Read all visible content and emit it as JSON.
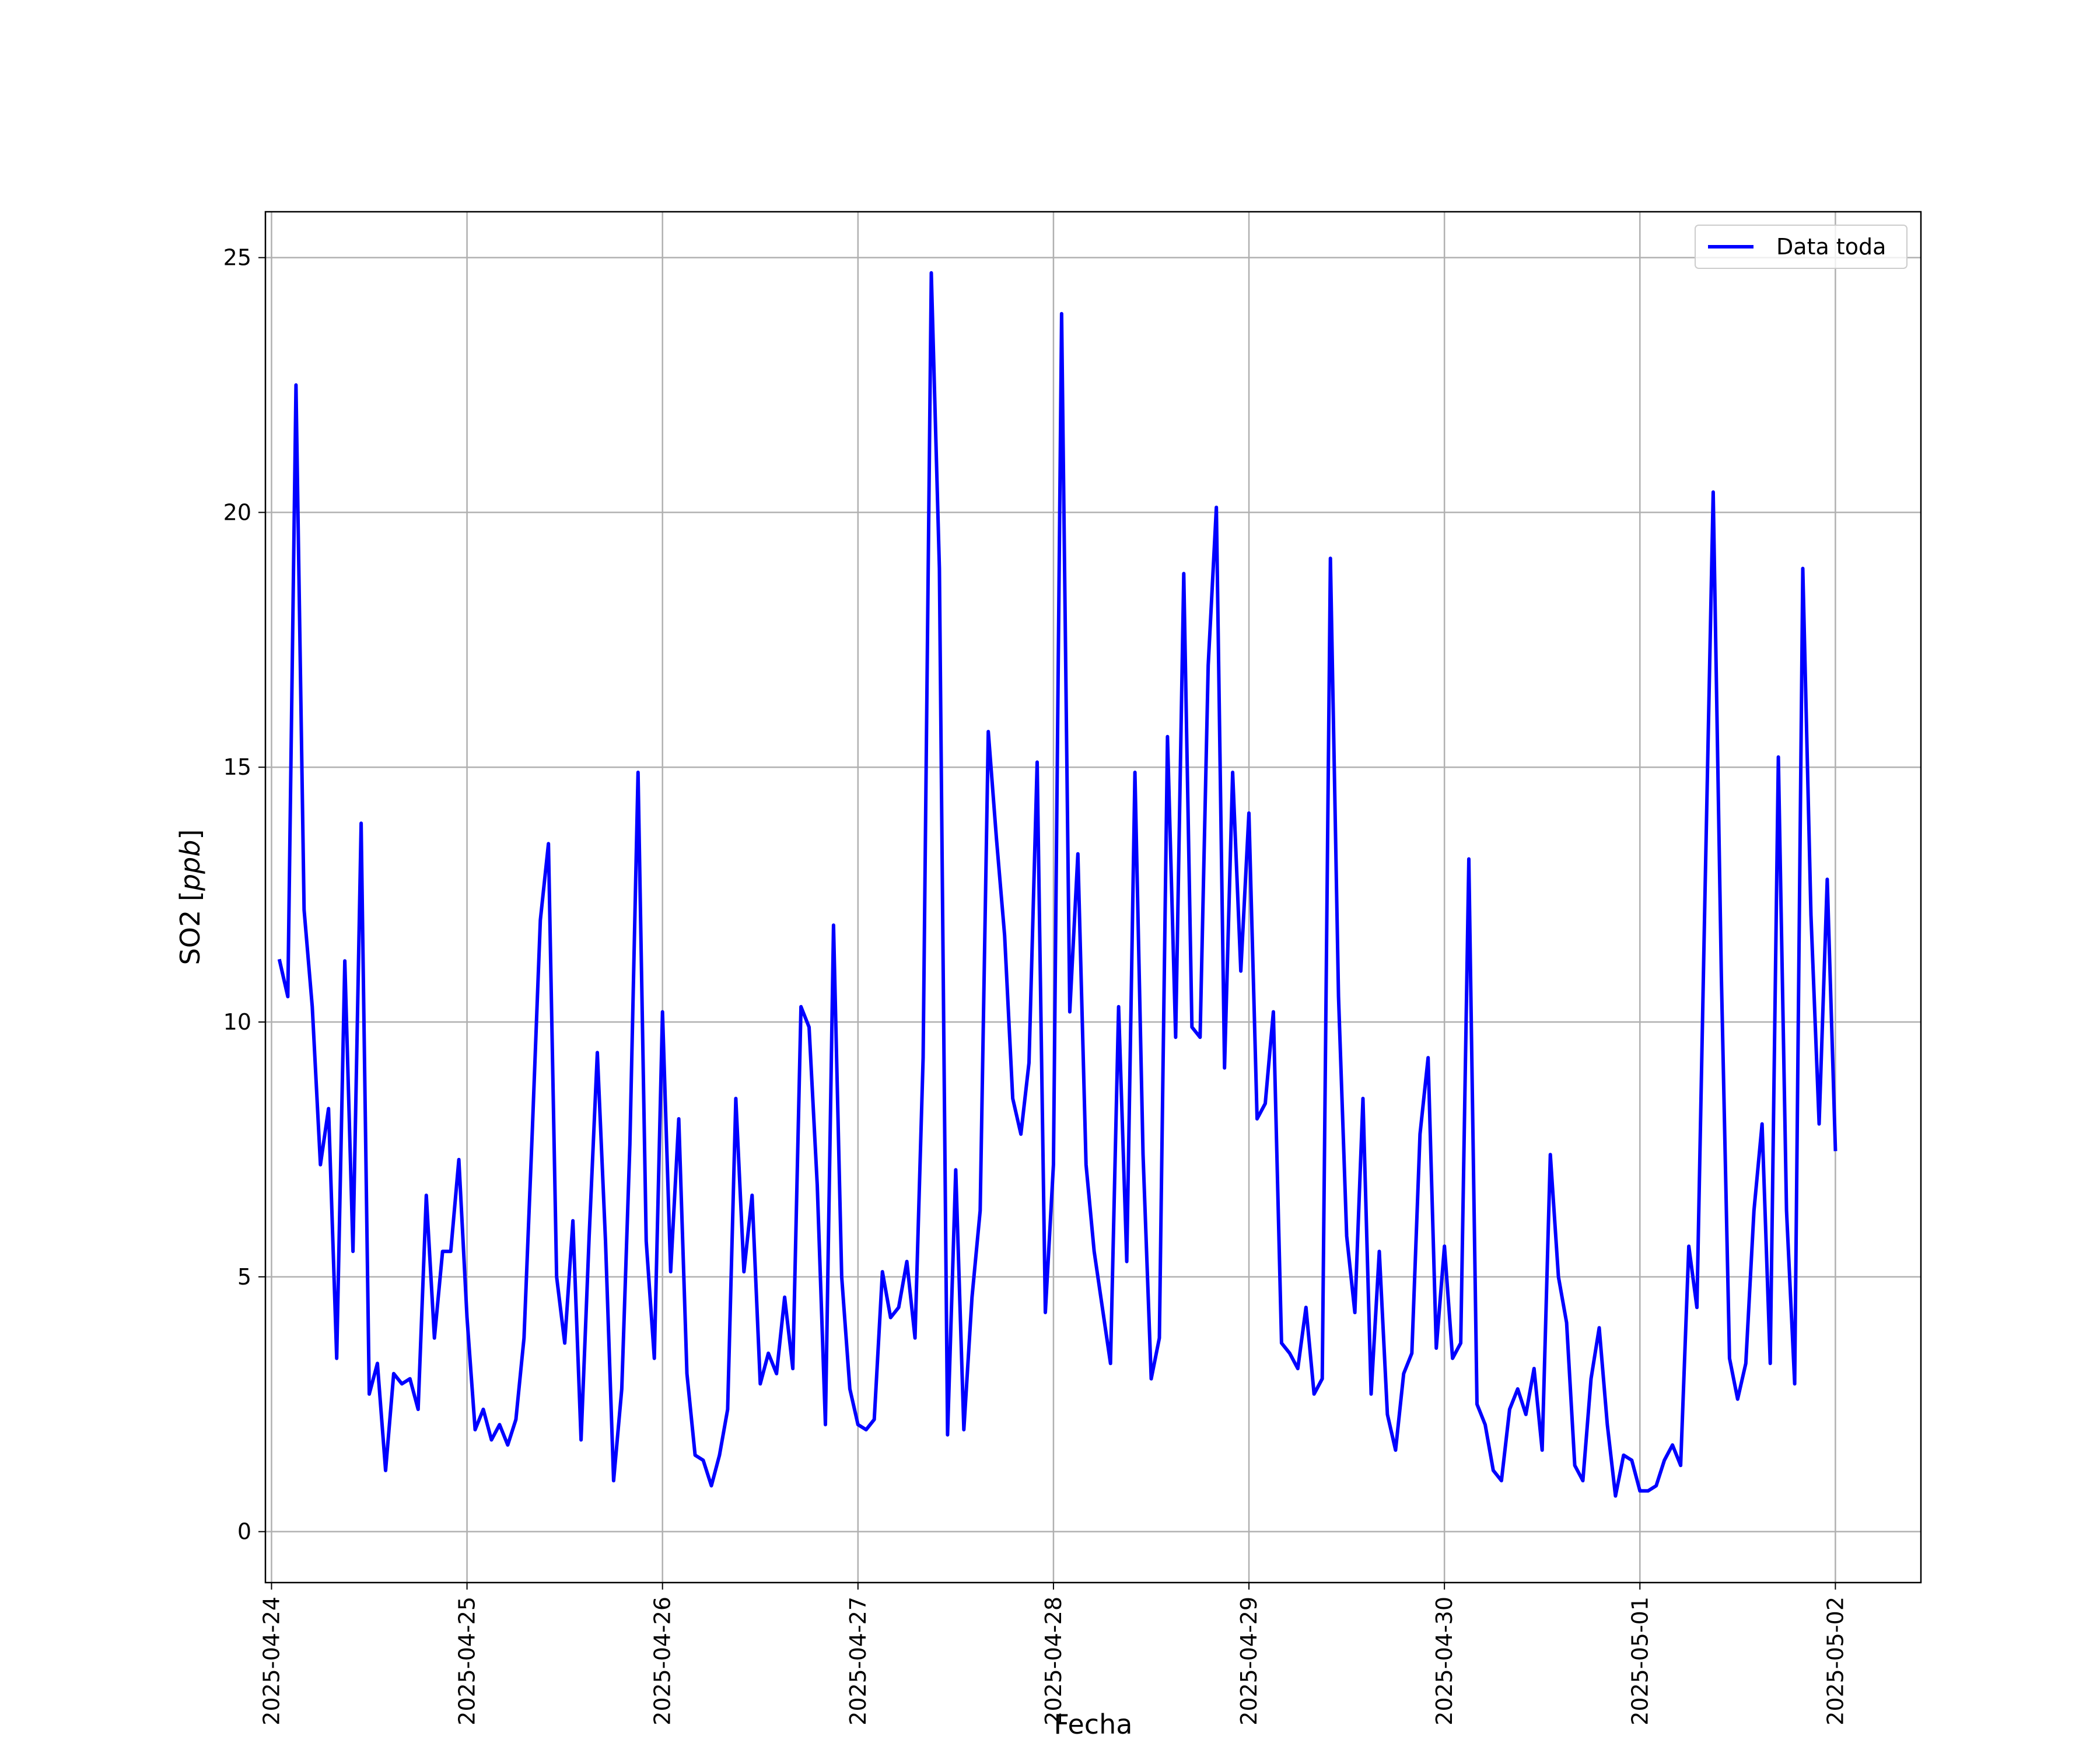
{
  "chart_data": {
    "type": "line",
    "title": "",
    "xlabel": "Fecha",
    "ylabel": "SO2 [ppb]",
    "ylabel_parts": {
      "text": "SO2 [",
      "italic": "ppb",
      "close": "]"
    },
    "xlim": [
      "2025-04-23T23:15",
      "2025-05-02T10:30"
    ],
    "ylim": [
      -1.0,
      25.9
    ],
    "grid": true,
    "legend_position": "top-right",
    "x_ticks": [
      "2025-04-24",
      "2025-04-25",
      "2025-04-26",
      "2025-04-27",
      "2025-04-28",
      "2025-04-29",
      "2025-04-30",
      "2025-05-01",
      "2025-05-02"
    ],
    "y_ticks": [
      0,
      5,
      10,
      15,
      20,
      25
    ],
    "x_start": "2025-04-24T01:00",
    "x_step_hours": 1,
    "series": [
      {
        "name": "Data toda",
        "color": "#0000ff",
        "values": [
          11.2,
          10.5,
          22.5,
          12.2,
          10.3,
          7.2,
          8.3,
          3.4,
          11.2,
          5.5,
          13.9,
          2.7,
          3.3,
          1.2,
          3.1,
          2.9,
          3.0,
          2.4,
          6.6,
          3.8,
          5.5,
          5.5,
          7.3,
          4.2,
          2.0,
          2.4,
          1.8,
          2.1,
          1.7,
          2.2,
          3.8,
          7.8,
          12.0,
          13.5,
          5.0,
          3.7,
          6.1,
          1.8,
          5.8,
          9.4,
          5.7,
          1.0,
          2.8,
          7.6,
          14.9,
          5.7,
          3.4,
          10.2,
          5.1,
          8.1,
          3.1,
          1.5,
          1.4,
          0.9,
          1.5,
          2.4,
          8.5,
          5.1,
          6.6,
          2.9,
          3.5,
          3.1,
          4.6,
          3.2,
          10.3,
          9.9,
          6.8,
          2.1,
          11.9,
          5.0,
          2.8,
          2.1,
          2.0,
          2.2,
          5.1,
          4.2,
          4.4,
          5.3,
          3.8,
          9.3,
          24.7,
          18.9,
          1.9,
          7.1,
          2.0,
          4.6,
          6.3,
          15.7,
          13.6,
          11.7,
          8.5,
          7.8,
          9.2,
          15.1,
          4.3,
          7.2,
          23.9,
          10.2,
          13.3,
          7.2,
          5.5,
          4.4,
          3.3,
          10.3,
          5.3,
          14.9,
          7.4,
          3.0,
          3.8,
          15.6,
          9.7,
          18.8,
          9.9,
          9.7,
          17.0,
          20.1,
          9.1,
          14.9,
          11.0,
          14.1,
          8.1,
          8.4,
          10.2,
          3.7,
          3.5,
          3.2,
          4.4,
          2.7,
          3.0,
          19.1,
          10.5,
          5.8,
          4.3,
          8.5,
          2.7,
          5.5,
          2.3,
          1.6,
          3.1,
          3.5,
          7.8,
          9.3,
          3.6,
          5.6,
          3.4,
          3.7,
          13.2,
          2.5,
          2.1,
          1.2,
          1.0,
          2.4,
          2.8,
          2.3,
          3.2,
          1.6,
          7.4,
          5.0,
          4.1,
          1.3,
          1.0,
          3.0,
          4.0,
          2.1,
          0.7,
          1.5,
          1.4,
          0.8,
          0.8,
          0.9,
          1.4,
          1.7,
          1.3,
          5.6,
          4.4,
          12.6,
          20.4,
          10.9,
          3.4,
          2.6,
          3.3,
          6.3,
          8.0,
          3.3,
          15.2,
          6.3,
          2.9,
          18.9,
          12.1,
          8.0,
          12.8,
          7.5
        ]
      }
    ]
  }
}
